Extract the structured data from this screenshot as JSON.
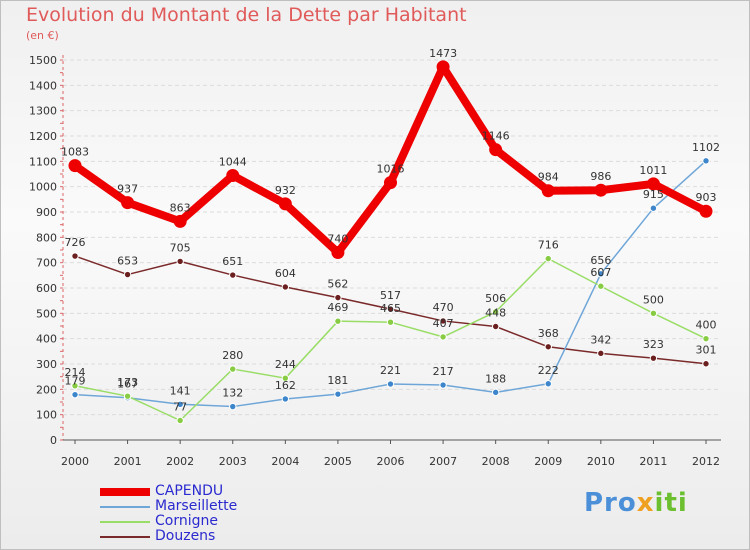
{
  "header": {
    "title": "Evolution du Montant de la Dette par Habitant",
    "unit": "(en €)"
  },
  "logo": {
    "text": "Proxiti",
    "part1": "Pro",
    "part2": "x",
    "part3": "iti"
  },
  "chart_data": {
    "type": "line",
    "title": "Evolution du Montant de la Dette par Habitant",
    "ylabel": "(en €)",
    "xlabel": "",
    "x": [
      "2000",
      "2001",
      "2002",
      "2003",
      "2004",
      "2005",
      "2006",
      "2007",
      "2008",
      "2009",
      "2010",
      "2011",
      "2012"
    ],
    "ylim": [
      0,
      1500
    ],
    "yticks": [
      0,
      100,
      200,
      300,
      400,
      500,
      600,
      700,
      800,
      900,
      1000,
      1100,
      1200,
      1300,
      1400,
      1500
    ],
    "grid": true,
    "legend_position": "bottom-left",
    "series": [
      {
        "name": "CAPENDU",
        "color": "#ee0000",
        "values": [
          1083,
          937,
          863,
          1044,
          932,
          740,
          1016,
          1473,
          1146,
          984,
          986,
          1011,
          903
        ]
      },
      {
        "name": "Marseillette",
        "color": "#6fa6d8",
        "values": [
          179,
          167,
          141,
          132,
          162,
          181,
          221,
          217,
          188,
          222,
          656,
          915,
          1102
        ]
      },
      {
        "name": "Cornigne",
        "color": "#99dd66",
        "values": [
          214,
          173,
          77,
          280,
          244,
          469,
          465,
          407,
          506,
          716,
          607,
          500,
          400
        ]
      },
      {
        "name": "Douzens",
        "color": "#7a2a2a",
        "values": [
          726,
          653,
          705,
          651,
          604,
          562,
          517,
          470,
          448,
          368,
          342,
          323,
          301
        ]
      }
    ]
  }
}
